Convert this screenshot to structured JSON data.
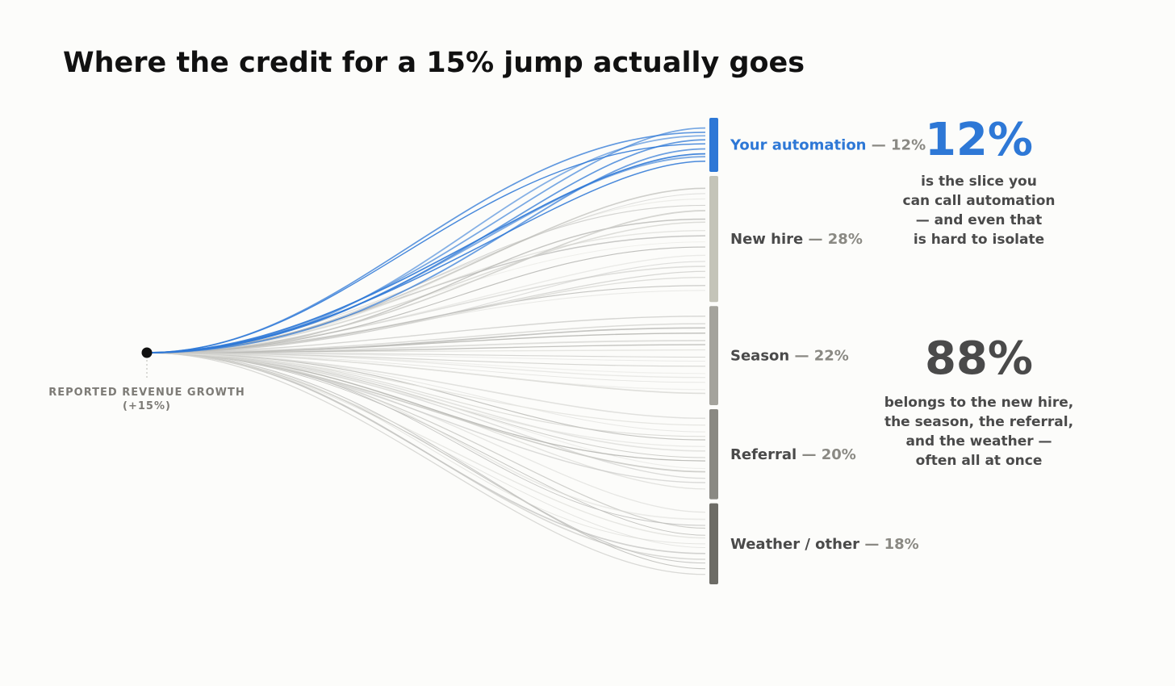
{
  "chart_data": {
    "type": "flow",
    "title": "Where the credit for a 15% jump actually goes",
    "source": {
      "label": "REPORTED REVENUE GROWTH",
      "sublabel": "(+15%)"
    },
    "segments": [
      {
        "name": "Your automation",
        "value": 12,
        "value_label": "12%",
        "color": "#2e78d6",
        "label_color": "#2e78d6",
        "highlight": true,
        "flows": 9
      },
      {
        "name": "New hire",
        "value": 28,
        "value_label": "28%",
        "color": "#c4c4b8",
        "label_color": "#4a4a4a",
        "highlight": false,
        "flows": 18
      },
      {
        "name": "Season",
        "value": 22,
        "value_label": "22%",
        "color": "#a4a39c",
        "label_color": "#4a4a4a",
        "highlight": false,
        "flows": 15
      },
      {
        "name": "Referral",
        "value": 20,
        "value_label": "20%",
        "color": "#8a8983",
        "label_color": "#4a4a4a",
        "highlight": false,
        "flows": 14
      },
      {
        "name": "Weather / other",
        "value": 18,
        "value_label": "18%",
        "color": "#6d6c66",
        "label_color": "#4a4a4a",
        "highlight": false,
        "flows": 13
      }
    ],
    "callouts": [
      {
        "number": "12%",
        "color": "#2e78d6",
        "lines": [
          "is the slice you",
          "can call automation",
          "— and even that",
          "is hard to isolate"
        ]
      },
      {
        "number": "88%",
        "color": "#4a4a4a",
        "lines": [
          "belongs to the new hire,",
          "the season, the referral,",
          "and the weather —",
          "often all at once"
        ]
      }
    ],
    "colors": {
      "background": "#fcfcfa",
      "title": "#111111",
      "label_muted": "#7d7b76",
      "text_dark": "#4a4a4a",
      "accent": "#2e78d6"
    }
  }
}
